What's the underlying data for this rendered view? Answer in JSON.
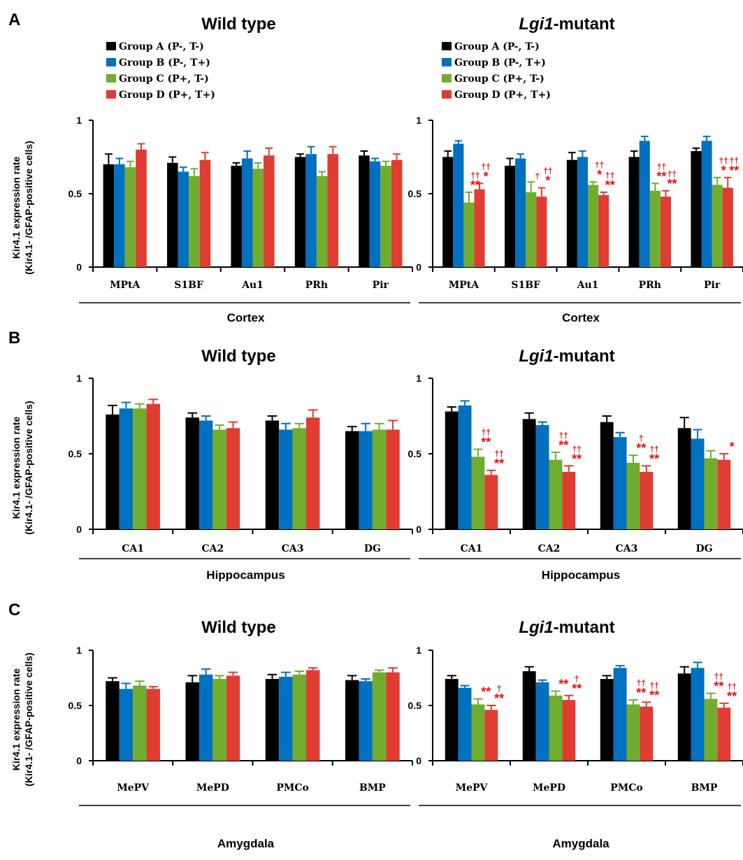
{
  "colors": {
    "group_a": "#000000",
    "group_b": "#0070c0",
    "group_c": "#70ad2f",
    "group_d": "#e03c31",
    "significance": "#ee1111"
  },
  "legend": [
    {
      "key": "group_a",
      "label": "Group A (P-, T-)"
    },
    {
      "key": "group_b",
      "label": "Group B (P-, T+)"
    },
    {
      "key": "group_c",
      "label": "Group C (P+, T-)"
    },
    {
      "key": "group_d",
      "label": "Group D (P+, T+)"
    }
  ],
  "ylabel_line1": "Kir4.1 expression rate",
  "ylabel_line2": "(Kir4.1- /GFAP-positive cells)",
  "chart_data": [
    {
      "type": "bar",
      "panel": "A",
      "title": "Wild type",
      "title_italic": "",
      "xlabel": "Cortex",
      "ylim": [
        0,
        1
      ],
      "yticks": [
        "0",
        "0.5",
        "1"
      ],
      "categories": [
        "MPtA",
        "S1BF",
        "Au1",
        "PRh",
        "Pir"
      ],
      "series": [
        {
          "name": "Group A (P-, T-)",
          "values": [
            0.7,
            0.71,
            0.69,
            0.75,
            0.76
          ],
          "errors": [
            0.07,
            0.04,
            0.02,
            0.02,
            0.03
          ]
        },
        {
          "name": "Group B (P-, T+)",
          "values": [
            0.7,
            0.65,
            0.74,
            0.77,
            0.72
          ],
          "errors": [
            0.04,
            0.03,
            0.05,
            0.05,
            0.02
          ]
        },
        {
          "name": "Group C (P+, T-)",
          "values": [
            0.68,
            0.62,
            0.67,
            0.62,
            0.69
          ],
          "errors": [
            0.04,
            0.05,
            0.04,
            0.03,
            0.03
          ]
        },
        {
          "name": "Group D (P+, T+)",
          "values": [
            0.8,
            0.73,
            0.76,
            0.77,
            0.73
          ],
          "errors": [
            0.04,
            0.05,
            0.05,
            0.05,
            0.04
          ]
        }
      ],
      "annotations": []
    },
    {
      "type": "bar",
      "panel": "",
      "title": "-mutant",
      "title_italic": "Lgi1",
      "xlabel": "Cortex",
      "ylim": [
        0,
        1
      ],
      "yticks": [
        "0",
        "0.5",
        "1"
      ],
      "categories": [
        "MPtA",
        "S1BF",
        "Au1",
        "PRh",
        "Pir"
      ],
      "series": [
        {
          "name": "Group A (P-, T-)",
          "values": [
            0.75,
            0.69,
            0.73,
            0.75,
            0.79
          ],
          "errors": [
            0.04,
            0.05,
            0.05,
            0.04,
            0.02
          ]
        },
        {
          "name": "Group B (P-, T+)",
          "values": [
            0.84,
            0.74,
            0.75,
            0.86,
            0.86
          ],
          "errors": [
            0.02,
            0.03,
            0.04,
            0.03,
            0.03
          ]
        },
        {
          "name": "Group C (P+, T-)",
          "values": [
            0.44,
            0.51,
            0.56,
            0.52,
            0.56
          ],
          "errors": [
            0.07,
            0.07,
            0.02,
            0.05,
            0.05
          ]
        },
        {
          "name": "Group D (P+, T+)",
          "values": [
            0.53,
            0.48,
            0.49,
            0.48,
            0.54
          ],
          "errors": [
            0.04,
            0.06,
            0.02,
            0.04,
            0.07
          ]
        }
      ],
      "annotations": [
        {
          "cat": 0,
          "series": 2,
          "rows": [
            "††",
            "**"
          ]
        },
        {
          "cat": 0,
          "series": 3,
          "rows": [
            "††",
            "*"
          ]
        },
        {
          "cat": 1,
          "series": 2,
          "rows": [
            "†"
          ]
        },
        {
          "cat": 1,
          "series": 3,
          "rows": [
            "††",
            "*"
          ]
        },
        {
          "cat": 2,
          "series": 2,
          "rows": [
            "††",
            "*"
          ]
        },
        {
          "cat": 2,
          "series": 3,
          "rows": [
            "††",
            "**"
          ]
        },
        {
          "cat": 3,
          "series": 2,
          "rows": [
            "††",
            "**"
          ]
        },
        {
          "cat": 3,
          "series": 3,
          "rows": [
            "††",
            "**"
          ]
        },
        {
          "cat": 4,
          "series": 2,
          "rows": [
            "††",
            "*"
          ]
        },
        {
          "cat": 4,
          "series": 3,
          "rows": [
            "††",
            "**"
          ]
        }
      ]
    },
    {
      "type": "bar",
      "panel": "B",
      "title": "Wild type",
      "title_italic": "",
      "xlabel": "Hippocampus",
      "ylim": [
        0,
        1
      ],
      "yticks": [
        "0",
        "0.5",
        "1"
      ],
      "categories": [
        "CA1",
        "CA2",
        "CA3",
        "DG"
      ],
      "series": [
        {
          "name": "Group A (P-, T-)",
          "values": [
            0.76,
            0.74,
            0.72,
            0.65
          ],
          "errors": [
            0.06,
            0.03,
            0.03,
            0.03
          ]
        },
        {
          "name": "Group B (P-, T+)",
          "values": [
            0.8,
            0.72,
            0.66,
            0.65
          ],
          "errors": [
            0.04,
            0.03,
            0.04,
            0.05
          ]
        },
        {
          "name": "Group C (P+, T-)",
          "values": [
            0.8,
            0.66,
            0.67,
            0.66
          ],
          "errors": [
            0.03,
            0.03,
            0.03,
            0.04
          ]
        },
        {
          "name": "Group D (P+, T+)",
          "values": [
            0.83,
            0.67,
            0.74,
            0.66
          ],
          "errors": [
            0.03,
            0.04,
            0.05,
            0.06
          ]
        }
      ],
      "annotations": []
    },
    {
      "type": "bar",
      "panel": "",
      "title": "-mutant",
      "title_italic": "Lgi1",
      "xlabel": "Hippocampus",
      "ylim": [
        0,
        1
      ],
      "yticks": [
        "0",
        "0.5",
        "1"
      ],
      "categories": [
        "CA1",
        "CA2",
        "CA3",
        "DG"
      ],
      "series": [
        {
          "name": "Group A (P-, T-)",
          "values": [
            0.78,
            0.73,
            0.71,
            0.67
          ],
          "errors": [
            0.03,
            0.04,
            0.04,
            0.07
          ]
        },
        {
          "name": "Group B (P-, T+)",
          "values": [
            0.82,
            0.69,
            0.61,
            0.6
          ],
          "errors": [
            0.03,
            0.02,
            0.03,
            0.06
          ]
        },
        {
          "name": "Group C (P+, T-)",
          "values": [
            0.48,
            0.46,
            0.44,
            0.47
          ],
          "errors": [
            0.05,
            0.05,
            0.05,
            0.05
          ]
        },
        {
          "name": "Group D (P+, T+)",
          "values": [
            0.36,
            0.38,
            0.38,
            0.46
          ],
          "errors": [
            0.03,
            0.04,
            0.04,
            0.04
          ]
        }
      ],
      "annotations": [
        {
          "cat": 0,
          "series": 2,
          "rows": [
            "††",
            "**"
          ]
        },
        {
          "cat": 0,
          "series": 3,
          "rows": [
            "††",
            "**"
          ]
        },
        {
          "cat": 1,
          "series": 2,
          "rows": [
            "††",
            "**"
          ]
        },
        {
          "cat": 1,
          "series": 3,
          "rows": [
            "††",
            "**"
          ]
        },
        {
          "cat": 2,
          "series": 2,
          "rows": [
            "†",
            "**"
          ]
        },
        {
          "cat": 2,
          "series": 3,
          "rows": [
            "††",
            "**"
          ]
        },
        {
          "cat": 3,
          "series": 3,
          "rows": [
            "*"
          ]
        }
      ]
    },
    {
      "type": "bar",
      "panel": "C",
      "title": "Wild type",
      "title_italic": "",
      "xlabel": "Amygdala",
      "ylim": [
        0,
        1
      ],
      "yticks": [
        "0",
        "0.5",
        "1"
      ],
      "categories": [
        "MePV",
        "MePD",
        "PMCo",
        "BMP"
      ],
      "series": [
        {
          "name": "Group A (P-, T-)",
          "values": [
            0.72,
            0.71,
            0.74,
            0.73
          ],
          "errors": [
            0.03,
            0.06,
            0.04,
            0.04
          ]
        },
        {
          "name": "Group B (P-, T+)",
          "values": [
            0.65,
            0.78,
            0.76,
            0.72
          ],
          "errors": [
            0.05,
            0.05,
            0.04,
            0.02
          ]
        },
        {
          "name": "Group C (P+, T-)",
          "values": [
            0.68,
            0.74,
            0.78,
            0.8
          ],
          "errors": [
            0.04,
            0.03,
            0.03,
            0.02
          ]
        },
        {
          "name": "Group D (P+, T+)",
          "values": [
            0.65,
            0.77,
            0.82,
            0.8
          ],
          "errors": [
            0.02,
            0.03,
            0.02,
            0.04
          ]
        }
      ],
      "annotations": []
    },
    {
      "type": "bar",
      "panel": "",
      "title": "-mutant",
      "title_italic": "Lgi1",
      "xlabel": "Amygdala",
      "ylim": [
        0,
        1
      ],
      "yticks": [
        "0",
        "0.5",
        "1"
      ],
      "categories": [
        "MePV",
        "MePD",
        "PMCo",
        "BMP"
      ],
      "series": [
        {
          "name": "Group A (P-, T-)",
          "values": [
            0.74,
            0.81,
            0.74,
            0.79
          ],
          "errors": [
            0.03,
            0.04,
            0.03,
            0.06
          ]
        },
        {
          "name": "Group B (P-, T+)",
          "values": [
            0.66,
            0.71,
            0.84,
            0.84
          ],
          "errors": [
            0.02,
            0.02,
            0.02,
            0.05
          ]
        },
        {
          "name": "Group C (P+, T-)",
          "values": [
            0.51,
            0.59,
            0.51,
            0.56
          ],
          "errors": [
            0.05,
            0.04,
            0.04,
            0.05
          ]
        },
        {
          "name": "Group D (P+, T+)",
          "values": [
            0.46,
            0.55,
            0.49,
            0.48
          ],
          "errors": [
            0.04,
            0.04,
            0.04,
            0.04
          ]
        }
      ],
      "annotations": [
        {
          "cat": 0,
          "series": 2,
          "rows": [
            "**"
          ]
        },
        {
          "cat": 0,
          "series": 3,
          "rows": [
            "†",
            "**"
          ]
        },
        {
          "cat": 1,
          "series": 2,
          "rows": [
            "**"
          ]
        },
        {
          "cat": 1,
          "series": 3,
          "rows": [
            "†",
            "**"
          ]
        },
        {
          "cat": 2,
          "series": 2,
          "rows": [
            "††",
            "**"
          ]
        },
        {
          "cat": 2,
          "series": 3,
          "rows": [
            "††",
            "**"
          ]
        },
        {
          "cat": 3,
          "series": 2,
          "rows": [
            "††",
            "**"
          ]
        },
        {
          "cat": 3,
          "series": 3,
          "rows": [
            "††",
            "**"
          ]
        }
      ]
    }
  ]
}
